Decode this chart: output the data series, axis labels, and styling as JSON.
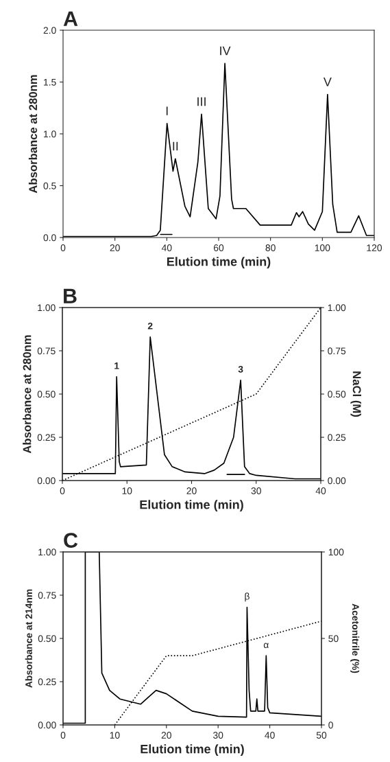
{
  "chart_data": [
    {
      "type": "line",
      "title": "A",
      "xlabel": "Elution time (min)",
      "ylabel": "Absorbance at 280nm",
      "xlim": [
        0,
        120
      ],
      "xticks": [
        0,
        20,
        40,
        60,
        80,
        100,
        120
      ],
      "ylim": [
        0,
        2.0
      ],
      "yticks": [
        {
          "value": 0,
          "label": "0.0"
        },
        {
          "value": 0.5,
          "label": "0.5"
        },
        {
          "value": 1.0,
          "label": "1.0"
        },
        {
          "value": 1.5,
          "label": "1.5"
        },
        {
          "value": 2.0,
          "label": "2.0"
        }
      ],
      "grid": false,
      "legend": false,
      "series": [
        {
          "color": "#000000",
          "line_style": "solid",
          "x": [
            0,
            34,
            36.1,
            37.5,
            40.1,
            42.4,
            43.3,
            47,
            49,
            52,
            53.4,
            56,
            59,
            60.5,
            62.4,
            65,
            65.7,
            70.5,
            76,
            88,
            90,
            91,
            92.4,
            94.6,
            97,
            100,
            102,
            104,
            105.7,
            111,
            114,
            117,
            120
          ],
          "values": [
            0.01,
            0.01,
            0.02,
            0.07,
            1.1,
            0.64,
            0.76,
            0.3,
            0.2,
            0.73,
            1.19,
            0.28,
            0.18,
            0.4,
            1.68,
            0.37,
            0.28,
            0.28,
            0.12,
            0.12,
            0.24,
            0.2,
            0.25,
            0.13,
            0.07,
            0.25,
            1.38,
            0.32,
            0.05,
            0.05,
            0.21,
            0.02,
            0.02
          ]
        },
        {
          "color": "#000000",
          "line_style": "solid",
          "x": [
            37.6,
            42
          ],
          "values": [
            0.03,
            0.03
          ]
        }
      ],
      "annotations": [
        {
          "text": "I",
          "x": 40.1,
          "y": 1.1
        },
        {
          "text": "II",
          "x": 43.3,
          "y": 0.76
        },
        {
          "text": "III",
          "x": 53.4,
          "y": 1.19
        },
        {
          "text": "IV",
          "x": 62.4,
          "y": 1.68
        },
        {
          "text": "V",
          "x": 102,
          "y": 1.38
        }
      ]
    },
    {
      "type": "line",
      "title": "B",
      "xlabel": "Elution time (min)",
      "ylabel": "Absorbance at 280nm",
      "y2label": "NaCl (M)",
      "xlim": [
        0,
        40
      ],
      "xticks": [
        0,
        10,
        20,
        30,
        40
      ],
      "ylim": [
        0,
        1.0
      ],
      "yticks": [
        {
          "value": 0,
          "label": "0.00"
        },
        {
          "value": 0.25,
          "label": "0.25"
        },
        {
          "value": 0.5,
          "label": "0.50"
        },
        {
          "value": 0.75,
          "label": "0.75"
        },
        {
          "value": 1.0,
          "label": "1.00"
        }
      ],
      "y2lim": [
        0,
        1.0
      ],
      "y2ticks": [
        {
          "value": 0,
          "label": "0.00"
        },
        {
          "value": 0.25,
          "label": "0.25"
        },
        {
          "value": 0.5,
          "label": "0.50"
        },
        {
          "value": 0.75,
          "label": "0.75"
        },
        {
          "value": 1.0,
          "label": "1.00"
        }
      ],
      "grid": false,
      "legend": false,
      "series": [
        {
          "color": "#000000",
          "line_style": "solid",
          "x": [
            0,
            8.2,
            8.4,
            8.8,
            9,
            13,
            13.6,
            15.8,
            17,
            19,
            22,
            23.5,
            25,
            26.5,
            27.6,
            28.2,
            29,
            30,
            36,
            40
          ],
          "values": [
            0.04,
            0.04,
            0.6,
            0.11,
            0.08,
            0.09,
            0.83,
            0.15,
            0.08,
            0.05,
            0.04,
            0.06,
            0.1,
            0.25,
            0.58,
            0.08,
            0.04,
            0.03,
            0.01,
            0.01
          ]
        },
        {
          "color": "#000000",
          "line_style": "solid",
          "x": [
            25.5,
            28.2
          ],
          "values": [
            0.035,
            0.035
          ]
        },
        {
          "color": "#000000",
          "line_style": "dotted",
          "axis": "y2",
          "x": [
            0,
            30,
            40
          ],
          "values": [
            0,
            0.5,
            1.0
          ]
        }
      ],
      "annotations": [
        {
          "text": "1",
          "x": 8.4,
          "y": 0.6
        },
        {
          "text": "2",
          "x": 13.6,
          "y": 0.83
        },
        {
          "text": "3",
          "x": 27.6,
          "y": 0.58
        }
      ]
    },
    {
      "type": "line",
      "title": "C",
      "xlabel": "Elution time (min)",
      "ylabel": "Absorbance at 214nm",
      "y2label": "Acetonitrile (%)",
      "xlim": [
        0,
        50
      ],
      "xticks": [
        0,
        10,
        20,
        30,
        40,
        50
      ],
      "ylim": [
        0,
        1.0
      ],
      "yticks": [
        {
          "value": 0,
          "label": "0.00"
        },
        {
          "value": 0.25,
          "label": "0.25"
        },
        {
          "value": 0.5,
          "label": "0.50"
        },
        {
          "value": 0.75,
          "label": "0.75"
        },
        {
          "value": 1.0,
          "label": "1.00"
        }
      ],
      "y2lim": [
        0,
        100
      ],
      "y2ticks": [
        0,
        50,
        100
      ],
      "grid": false,
      "legend": false,
      "series": [
        {
          "color": "#000000",
          "line_style": "solid",
          "x": [
            0,
            4.3,
            4.3,
            7,
            7.5,
            9,
            11,
            15,
            18,
            20,
            25,
            30,
            35.5,
            35.6,
            36,
            36.3,
            37.3,
            37.5,
            37.7,
            39,
            39.3,
            39.6,
            40,
            50
          ],
          "values": [
            0.01,
            0.01,
            1.0,
            1.0,
            0.3,
            0.2,
            0.15,
            0.12,
            0.2,
            0.18,
            0.08,
            0.05,
            0.045,
            0.68,
            0.2,
            0.08,
            0.08,
            0.15,
            0.08,
            0.08,
            0.4,
            0.1,
            0.07,
            0.05
          ]
        },
        {
          "color": "#000000",
          "line_style": "dotted",
          "axis": "y2",
          "x": [
            10,
            20,
            25,
            50
          ],
          "values": [
            0,
            40,
            40,
            60
          ]
        }
      ],
      "annotations": [
        {
          "text": "β",
          "x": 35.6,
          "y": 0.68
        },
        {
          "text": "α",
          "x": 39.3,
          "y": 0.4
        }
      ]
    }
  ]
}
